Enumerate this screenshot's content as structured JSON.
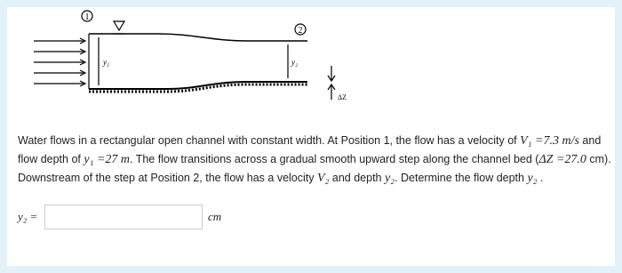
{
  "diagram": {
    "position_1": "1",
    "position_2": "2",
    "depth_1": "y₁",
    "depth_2": "y₂",
    "step": "ΔZ"
  },
  "problem": {
    "runs": [
      "Water flows in a rectangular open channel with constant width. At Position 1, the flow has a velocity of ",
      "V₁ =7.3",
      " m/s",
      " and flow depth of ",
      "y₁ =27 m",
      ". The flow transitions across a gradual smooth upward step along the channel bed (",
      "ΔZ =27.0",
      " cm). Downstream of the step at Position 2, the flow has a velocity ",
      "V₂",
      " and depth ",
      "y₂",
      ". Determine the flow depth ",
      "y₂",
      " ."
    ]
  },
  "answer": {
    "label": "y₂ =",
    "unit": "cm"
  }
}
